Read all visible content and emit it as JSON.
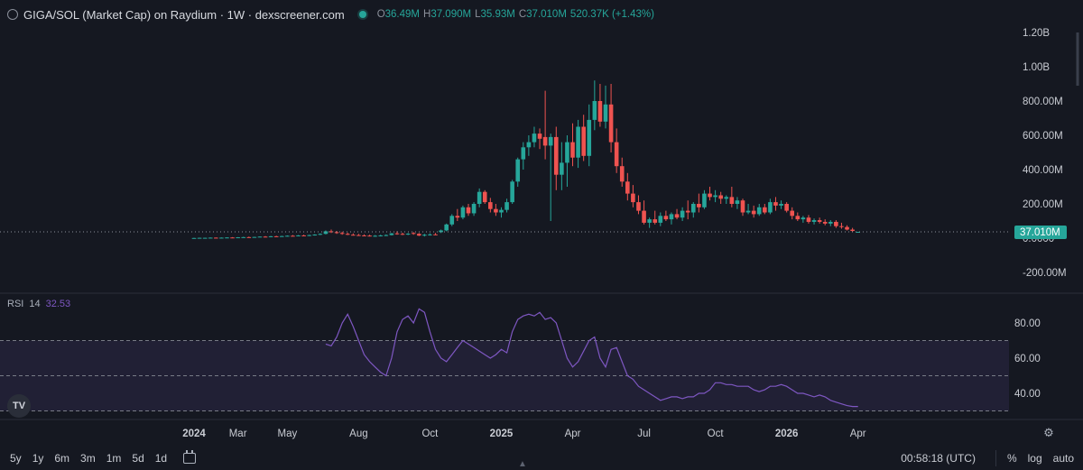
{
  "header": {
    "title": "GIGA/SOL (Market Cap) on Raydium · 1W · dexscreener.com",
    "ohlc": [
      {
        "k": "O",
        "v": "36.49M"
      },
      {
        "k": "H",
        "v": "37.090M"
      },
      {
        "k": "L",
        "v": "35.93M"
      },
      {
        "k": "C",
        "v": "37.010M"
      },
      {
        "k": "",
        "v": "520.37K (+1.43%)"
      }
    ]
  },
  "colors": {
    "up": "#26a69a",
    "down": "#ef5350",
    "rsi": "#7e57c2",
    "band": "#7e57c2",
    "bg": "#151821",
    "grid": "#1f2330"
  },
  "chart_data": [
    {
      "type": "candlestick",
      "title": "GIGA/SOL (Market Cap) on Raydium · 1W · dexscreener.com",
      "ylim": [
        -300,
        1300
      ],
      "yticks": [
        {
          "v": 1200,
          "label": "1.20B"
        },
        {
          "v": 1000,
          "label": "1.00B"
        },
        {
          "v": 800,
          "label": "800.00M"
        },
        {
          "v": 600,
          "label": "600.00M"
        },
        {
          "v": 400,
          "label": "400.00M"
        },
        {
          "v": 200,
          "label": "200.00M"
        },
        {
          "v": 0,
          "label": "0.0000"
        },
        {
          "v": -200,
          "label": "-200.00M"
        }
      ],
      "last_price": {
        "v": 37.01,
        "label": "37.010M"
      },
      "candles": [
        {
          "x": 0,
          "o": 1,
          "h": 2,
          "l": 0,
          "c": 1
        },
        {
          "x": 1,
          "o": 1,
          "h": 3,
          "l": 0,
          "c": 2
        },
        {
          "x": 2,
          "o": 2,
          "h": 3,
          "l": 1,
          "c": 2
        },
        {
          "x": 3,
          "o": 2,
          "h": 4,
          "l": 1,
          "c": 3
        },
        {
          "x": 4,
          "o": 3,
          "h": 4,
          "l": 2,
          "c": 2
        },
        {
          "x": 5,
          "o": 2,
          "h": 4,
          "l": 1,
          "c": 3
        },
        {
          "x": 6,
          "o": 3,
          "h": 5,
          "l": 2,
          "c": 4
        },
        {
          "x": 7,
          "o": 4,
          "h": 6,
          "l": 3,
          "c": 3
        },
        {
          "x": 8,
          "o": 3,
          "h": 6,
          "l": 2,
          "c": 5
        },
        {
          "x": 9,
          "o": 5,
          "h": 8,
          "l": 4,
          "c": 6
        },
        {
          "x": 10,
          "o": 6,
          "h": 9,
          "l": 4,
          "c": 5
        },
        {
          "x": 11,
          "o": 5,
          "h": 8,
          "l": 4,
          "c": 7
        },
        {
          "x": 12,
          "o": 7,
          "h": 10,
          "l": 5,
          "c": 9
        },
        {
          "x": 13,
          "o": 9,
          "h": 12,
          "l": 7,
          "c": 8
        },
        {
          "x": 14,
          "o": 8,
          "h": 13,
          "l": 6,
          "c": 11
        },
        {
          "x": 15,
          "o": 11,
          "h": 14,
          "l": 9,
          "c": 10
        },
        {
          "x": 16,
          "o": 10,
          "h": 14,
          "l": 9,
          "c": 12
        },
        {
          "x": 17,
          "o": 12,
          "h": 16,
          "l": 10,
          "c": 14
        },
        {
          "x": 18,
          "o": 14,
          "h": 18,
          "l": 12,
          "c": 13
        },
        {
          "x": 19,
          "o": 13,
          "h": 18,
          "l": 11,
          "c": 16
        },
        {
          "x": 20,
          "o": 16,
          "h": 20,
          "l": 13,
          "c": 15
        },
        {
          "x": 21,
          "o": 15,
          "h": 20,
          "l": 12,
          "c": 18
        },
        {
          "x": 22,
          "o": 18,
          "h": 23,
          "l": 15,
          "c": 21
        },
        {
          "x": 23,
          "o": 21,
          "h": 28,
          "l": 18,
          "c": 25
        },
        {
          "x": 24,
          "o": 25,
          "h": 45,
          "l": 22,
          "c": 40
        },
        {
          "x": 25,
          "o": 40,
          "h": 50,
          "l": 30,
          "c": 35
        },
        {
          "x": 26,
          "o": 35,
          "h": 42,
          "l": 25,
          "c": 30
        },
        {
          "x": 27,
          "o": 30,
          "h": 38,
          "l": 20,
          "c": 25
        },
        {
          "x": 28,
          "o": 25,
          "h": 32,
          "l": 18,
          "c": 20
        },
        {
          "x": 29,
          "o": 20,
          "h": 28,
          "l": 15,
          "c": 18
        },
        {
          "x": 30,
          "o": 18,
          "h": 25,
          "l": 14,
          "c": 16
        },
        {
          "x": 31,
          "o": 16,
          "h": 22,
          "l": 12,
          "c": 15
        },
        {
          "x": 32,
          "o": 15,
          "h": 20,
          "l": 10,
          "c": 12
        },
        {
          "x": 33,
          "o": 12,
          "h": 18,
          "l": 8,
          "c": 14
        },
        {
          "x": 34,
          "o": 14,
          "h": 20,
          "l": 10,
          "c": 16
        },
        {
          "x": 35,
          "o": 16,
          "h": 22,
          "l": 12,
          "c": 18
        },
        {
          "x": 36,
          "o": 18,
          "h": 30,
          "l": 16,
          "c": 28
        },
        {
          "x": 37,
          "o": 28,
          "h": 40,
          "l": 20,
          "c": 25
        },
        {
          "x": 38,
          "o": 25,
          "h": 32,
          "l": 18,
          "c": 22
        },
        {
          "x": 39,
          "o": 22,
          "h": 30,
          "l": 18,
          "c": 26
        },
        {
          "x": 40,
          "o": 30,
          "h": 35,
          "l": 20,
          "c": 25
        },
        {
          "x": 41,
          "o": 25,
          "h": 30,
          "l": 12,
          "c": 15
        },
        {
          "x": 42,
          "o": 15,
          "h": 25,
          "l": 10,
          "c": 20
        },
        {
          "x": 43,
          "o": 20,
          "h": 28,
          "l": 15,
          "c": 22
        },
        {
          "x": 44,
          "o": 22,
          "h": 30,
          "l": 18,
          "c": 20
        },
        {
          "x": 45,
          "o": 35,
          "h": 50,
          "l": 30,
          "c": 45
        },
        {
          "x": 46,
          "o": 45,
          "h": 85,
          "l": 40,
          "c": 80
        },
        {
          "x": 47,
          "o": 80,
          "h": 140,
          "l": 70,
          "c": 130
        },
        {
          "x": 48,
          "o": 130,
          "h": 170,
          "l": 100,
          "c": 120
        },
        {
          "x": 49,
          "o": 120,
          "h": 190,
          "l": 110,
          "c": 180
        },
        {
          "x": 50,
          "o": 180,
          "h": 200,
          "l": 130,
          "c": 145
        },
        {
          "x": 51,
          "o": 145,
          "h": 210,
          "l": 130,
          "c": 200
        },
        {
          "x": 52,
          "o": 200,
          "h": 290,
          "l": 180,
          "c": 270
        },
        {
          "x": 53,
          "o": 270,
          "h": 280,
          "l": 200,
          "c": 210
        },
        {
          "x": 54,
          "o": 210,
          "h": 235,
          "l": 150,
          "c": 170
        },
        {
          "x": 55,
          "o": 170,
          "h": 200,
          "l": 130,
          "c": 150
        },
        {
          "x": 56,
          "o": 150,
          "h": 180,
          "l": 120,
          "c": 165
        },
        {
          "x": 57,
          "o": 165,
          "h": 230,
          "l": 150,
          "c": 210
        },
        {
          "x": 58,
          "o": 210,
          "h": 340,
          "l": 200,
          "c": 330
        },
        {
          "x": 59,
          "o": 330,
          "h": 470,
          "l": 300,
          "c": 460
        },
        {
          "x": 60,
          "o": 460,
          "h": 560,
          "l": 400,
          "c": 530
        },
        {
          "x": 61,
          "o": 530,
          "h": 600,
          "l": 480,
          "c": 560
        },
        {
          "x": 62,
          "o": 560,
          "h": 650,
          "l": 530,
          "c": 610
        },
        {
          "x": 63,
          "o": 610,
          "h": 640,
          "l": 520,
          "c": 580
        },
        {
          "x": 64,
          "o": 590,
          "h": 860,
          "l": 460,
          "c": 540
        },
        {
          "x": 65,
          "o": 540,
          "h": 610,
          "l": 100,
          "c": 590
        },
        {
          "x": 66,
          "o": 590,
          "h": 650,
          "l": 280,
          "c": 370
        },
        {
          "x": 67,
          "o": 370,
          "h": 560,
          "l": 280,
          "c": 440
        },
        {
          "x": 68,
          "o": 440,
          "h": 600,
          "l": 300,
          "c": 560
        },
        {
          "x": 69,
          "o": 560,
          "h": 670,
          "l": 420,
          "c": 470
        },
        {
          "x": 70,
          "o": 470,
          "h": 690,
          "l": 410,
          "c": 650
        },
        {
          "x": 71,
          "o": 650,
          "h": 720,
          "l": 450,
          "c": 480
        },
        {
          "x": 72,
          "o": 480,
          "h": 780,
          "l": 420,
          "c": 690
        },
        {
          "x": 73,
          "o": 690,
          "h": 920,
          "l": 630,
          "c": 800
        },
        {
          "x": 74,
          "o": 800,
          "h": 900,
          "l": 650,
          "c": 680
        },
        {
          "x": 75,
          "o": 680,
          "h": 890,
          "l": 640,
          "c": 780
        },
        {
          "x": 76,
          "o": 780,
          "h": 900,
          "l": 500,
          "c": 560
        },
        {
          "x": 77,
          "o": 560,
          "h": 640,
          "l": 380,
          "c": 420
        },
        {
          "x": 78,
          "o": 420,
          "h": 470,
          "l": 300,
          "c": 330
        },
        {
          "x": 79,
          "o": 330,
          "h": 380,
          "l": 220,
          "c": 260
        },
        {
          "x": 80,
          "o": 260,
          "h": 310,
          "l": 180,
          "c": 210
        },
        {
          "x": 81,
          "o": 210,
          "h": 250,
          "l": 140,
          "c": 160
        },
        {
          "x": 82,
          "o": 160,
          "h": 220,
          "l": 80,
          "c": 90
        },
        {
          "x": 83,
          "o": 90,
          "h": 120,
          "l": 60,
          "c": 110
        },
        {
          "x": 84,
          "o": 110,
          "h": 160,
          "l": 80,
          "c": 90
        },
        {
          "x": 85,
          "o": 90,
          "h": 150,
          "l": 70,
          "c": 130
        },
        {
          "x": 86,
          "o": 130,
          "h": 160,
          "l": 100,
          "c": 110
        },
        {
          "x": 87,
          "o": 110,
          "h": 150,
          "l": 80,
          "c": 140
        },
        {
          "x": 88,
          "o": 140,
          "h": 170,
          "l": 110,
          "c": 120
        },
        {
          "x": 89,
          "o": 120,
          "h": 180,
          "l": 100,
          "c": 160
        },
        {
          "x": 90,
          "o": 160,
          "h": 220,
          "l": 110,
          "c": 150
        },
        {
          "x": 91,
          "o": 150,
          "h": 210,
          "l": 120,
          "c": 200
        },
        {
          "x": 92,
          "o": 200,
          "h": 260,
          "l": 150,
          "c": 180
        },
        {
          "x": 93,
          "o": 180,
          "h": 280,
          "l": 170,
          "c": 260
        },
        {
          "x": 94,
          "o": 260,
          "h": 300,
          "l": 220,
          "c": 240
        },
        {
          "x": 95,
          "o": 240,
          "h": 280,
          "l": 210,
          "c": 250
        },
        {
          "x": 96,
          "o": 250,
          "h": 270,
          "l": 200,
          "c": 230
        },
        {
          "x": 97,
          "o": 230,
          "h": 250,
          "l": 200,
          "c": 240
        },
        {
          "x": 98,
          "o": 240,
          "h": 300,
          "l": 180,
          "c": 200
        },
        {
          "x": 99,
          "o": 200,
          "h": 240,
          "l": 170,
          "c": 220
        },
        {
          "x": 100,
          "o": 220,
          "h": 230,
          "l": 130,
          "c": 150
        },
        {
          "x": 101,
          "o": 150,
          "h": 200,
          "l": 140,
          "c": 160
        },
        {
          "x": 102,
          "o": 160,
          "h": 190,
          "l": 120,
          "c": 140
        },
        {
          "x": 103,
          "o": 140,
          "h": 200,
          "l": 130,
          "c": 180
        },
        {
          "x": 104,
          "o": 180,
          "h": 200,
          "l": 140,
          "c": 150
        },
        {
          "x": 105,
          "o": 150,
          "h": 230,
          "l": 140,
          "c": 210
        },
        {
          "x": 106,
          "o": 210,
          "h": 240,
          "l": 160,
          "c": 190
        },
        {
          "x": 107,
          "o": 190,
          "h": 220,
          "l": 170,
          "c": 200
        },
        {
          "x": 108,
          "o": 200,
          "h": 210,
          "l": 150,
          "c": 160
        },
        {
          "x": 109,
          "o": 160,
          "h": 180,
          "l": 110,
          "c": 130
        },
        {
          "x": 110,
          "o": 130,
          "h": 150,
          "l": 100,
          "c": 110
        },
        {
          "x": 111,
          "o": 110,
          "h": 130,
          "l": 90,
          "c": 120
        },
        {
          "x": 112,
          "o": 120,
          "h": 135,
          "l": 85,
          "c": 95
        },
        {
          "x": 113,
          "o": 95,
          "h": 115,
          "l": 80,
          "c": 105
        },
        {
          "x": 114,
          "o": 105,
          "h": 120,
          "l": 85,
          "c": 95
        },
        {
          "x": 115,
          "o": 95,
          "h": 110,
          "l": 75,
          "c": 85
        },
        {
          "x": 116,
          "o": 85,
          "h": 105,
          "l": 70,
          "c": 95
        },
        {
          "x": 117,
          "o": 95,
          "h": 105,
          "l": 60,
          "c": 70
        },
        {
          "x": 118,
          "o": 70,
          "h": 90,
          "l": 55,
          "c": 65
        },
        {
          "x": 119,
          "o": 65,
          "h": 75,
          "l": 45,
          "c": 50
        },
        {
          "x": 120,
          "o": 50,
          "h": 60,
          "l": 38,
          "c": 42
        },
        {
          "x": 121,
          "o": 36.49,
          "h": 37.09,
          "l": 35.93,
          "c": 37.01
        }
      ]
    },
    {
      "type": "line",
      "indicator": "RSI",
      "period": "14",
      "value_label": "32.53",
      "ylim": [
        28,
        92
      ],
      "band": [
        30,
        70
      ],
      "middle": 50,
      "yticks": [
        {
          "v": 80,
          "label": "80.00"
        },
        {
          "v": 60,
          "label": "60.00"
        },
        {
          "v": 40,
          "label": "40.00"
        }
      ],
      "start_x": 24,
      "values": [
        68,
        67,
        72,
        80,
        85,
        78,
        70,
        62,
        58,
        55,
        52,
        50,
        60,
        75,
        82,
        84,
        80,
        88,
        86,
        75,
        65,
        60,
        58,
        62,
        66,
        70,
        68,
        66,
        64,
        62,
        60,
        62,
        65,
        63,
        75,
        82,
        84,
        85,
        84,
        86,
        82,
        83,
        80,
        70,
        60,
        55,
        58,
        64,
        70,
        72,
        60,
        55,
        65,
        66,
        58,
        50,
        48,
        44,
        42,
        40,
        38,
        36,
        37,
        38,
        38,
        37,
        38,
        38,
        40,
        40,
        42,
        46,
        46,
        45,
        45,
        44,
        44,
        44,
        42,
        41,
        42,
        44,
        44,
        45,
        44,
        42,
        40,
        40,
        39,
        38,
        39,
        38,
        36,
        35,
        34,
        33,
        32.5,
        32.53
      ]
    }
  ],
  "x_axis": {
    "labels": [
      {
        "x": 0,
        "label": "2024",
        "bold": true
      },
      {
        "x": 8,
        "label": "Mar"
      },
      {
        "x": 17,
        "label": "May"
      },
      {
        "x": 30,
        "label": "Aug"
      },
      {
        "x": 43,
        "label": "Oct"
      },
      {
        "x": 56,
        "label": "2025",
        "bold": true
      },
      {
        "x": 69,
        "label": "Apr"
      },
      {
        "x": 82,
        "label": "Jul"
      },
      {
        "x": 95,
        "label": "Oct"
      },
      {
        "x": 108,
        "label": "2026",
        "bold": true
      },
      {
        "x": 121,
        "label": "Apr"
      }
    ]
  },
  "toolbar": {
    "ranges": [
      "5y",
      "1y",
      "6m",
      "3m",
      "1m",
      "5d",
      "1d"
    ],
    "time": "00:58:18 (UTC)",
    "percent": "%",
    "log": "log",
    "auto": "auto"
  },
  "logo": {
    "text": "TV"
  }
}
